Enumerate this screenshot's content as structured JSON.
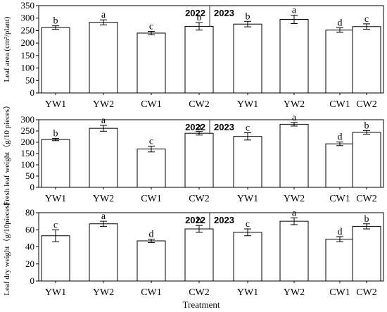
{
  "chart_data": [
    {
      "type": "bar",
      "ylabel": "Leaf area (cm²/plant)",
      "ylim": [
        0,
        350
      ],
      "yticks": [
        0,
        50,
        100,
        150,
        200,
        250,
        300,
        350
      ],
      "panels": [
        {
          "year": "2022",
          "categories": [
            "YW1",
            "YW2",
            "CW1",
            "CW2"
          ],
          "values": [
            262,
            283,
            240,
            267
          ],
          "errors": [
            7,
            10,
            7,
            15
          ],
          "letters": [
            "b",
            "a",
            "c",
            "b"
          ]
        },
        {
          "year": "2023",
          "categories": [
            "YW1",
            "YW2",
            "CW1",
            "CW2"
          ],
          "values": [
            276,
            295,
            252,
            266
          ],
          "errors": [
            11,
            17,
            9,
            11
          ],
          "letters": [
            "b",
            "a",
            "d",
            "c"
          ]
        }
      ]
    },
    {
      "type": "bar",
      "ylabel": "Fresh leaf weight（g/10 pieces）",
      "ylim": [
        0,
        300
      ],
      "yticks": [
        0,
        50,
        100,
        150,
        200,
        250,
        300
      ],
      "panels": [
        {
          "year": "2022",
          "categories": [
            "YW1",
            "YW2",
            "CW1",
            "CW2"
          ],
          "values": [
            212,
            262,
            170,
            240
          ],
          "errors": [
            5,
            13,
            13,
            8
          ],
          "letters": [
            "b",
            "a",
            "c",
            "a"
          ]
        },
        {
          "year": "2023",
          "categories": [
            "YW1",
            "YW2",
            "CW1",
            "CW2"
          ],
          "values": [
            226,
            280,
            193,
            244
          ],
          "errors": [
            16,
            8,
            8,
            8
          ],
          "letters": [
            "c",
            "a",
            "d",
            "b"
          ]
        }
      ]
    },
    {
      "type": "bar",
      "ylabel": "Leaf dry weight（g/10pieces）",
      "ylim": [
        0,
        80
      ],
      "yticks": [
        0,
        20,
        40,
        60,
        80
      ],
      "panels": [
        {
          "year": "2022",
          "categories": [
            "YW1",
            "YW2",
            "CW1",
            "CW2"
          ],
          "values": [
            53,
            67,
            47,
            61
          ],
          "errors": [
            7,
            3,
            2,
            4
          ],
          "letters": [
            "c",
            "a",
            "d",
            "b"
          ]
        },
        {
          "year": "2023",
          "categories": [
            "YW1",
            "YW2",
            "CW1",
            "CW2"
          ],
          "values": [
            57,
            70,
            49,
            64
          ],
          "errors": [
            4,
            4,
            3,
            3
          ],
          "letters": [
            "c",
            "a",
            "d",
            "b"
          ]
        }
      ]
    }
  ],
  "xlabel": "Treatment"
}
